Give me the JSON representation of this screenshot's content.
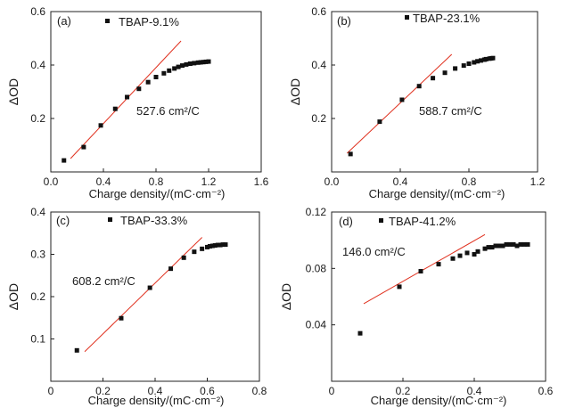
{
  "chart_data": [
    {
      "type": "scatter",
      "panel": "(a)",
      "legend": "TBAP-9.1%",
      "annotation": "527.6 cm²/C",
      "xlabel": "Charge density/(mC·cm⁻²)",
      "ylabel": "ΔOD",
      "xlim": [
        0,
        1.6
      ],
      "ylim": [
        0,
        0.6
      ],
      "xticks": [
        "0.0",
        "0.4",
        "0.8",
        "1.2",
        "1.6"
      ],
      "yticks": [
        "0.2",
        "0.4",
        "0.6"
      ],
      "x": [
        0.1,
        0.25,
        0.38,
        0.49,
        0.58,
        0.67,
        0.74,
        0.8,
        0.86,
        0.9,
        0.94,
        0.97,
        1.0,
        1.03,
        1.06,
        1.09,
        1.12,
        1.14,
        1.16,
        1.18,
        1.2
      ],
      "y": [
        0.043,
        0.093,
        0.174,
        0.236,
        0.28,
        0.311,
        0.336,
        0.355,
        0.369,
        0.379,
        0.387,
        0.393,
        0.398,
        0.402,
        0.405,
        0.407,
        0.409,
        0.41,
        0.411,
        0.412,
        0.413
      ],
      "fit": {
        "x": [
          0.15,
          0.99
        ],
        "y": [
          0.05,
          0.49
        ]
      }
    },
    {
      "type": "scatter",
      "panel": "(b)",
      "legend": "TBAP-23.1%",
      "annotation": "588.7 cm²/C",
      "xlabel": "Charge density/(mC·cm⁻²)",
      "ylabel": "ΔOD",
      "xlim": [
        0,
        1.2
      ],
      "ylim": [
        0,
        0.6
      ],
      "xticks": [
        "0.0",
        "0.4",
        "0.8",
        "1.2"
      ],
      "yticks": [
        "0.2",
        "0.4",
        "0.6"
      ],
      "x": [
        0.11,
        0.28,
        0.41,
        0.51,
        0.59,
        0.66,
        0.72,
        0.77,
        0.8,
        0.83,
        0.85,
        0.87,
        0.89,
        0.9,
        0.92,
        0.93,
        0.94
      ],
      "y": [
        0.067,
        0.188,
        0.27,
        0.321,
        0.351,
        0.371,
        0.387,
        0.398,
        0.405,
        0.41,
        0.414,
        0.417,
        0.42,
        0.422,
        0.424,
        0.425,
        0.426
      ],
      "fit": {
        "x": [
          0.09,
          0.7
        ],
        "y": [
          0.07,
          0.44
        ]
      }
    },
    {
      "type": "scatter",
      "panel": "(c)",
      "legend": "TBAP-33.3%",
      "annotation": "608.2 cm²/C",
      "xlabel": "Charge density/(mC·cm⁻²)",
      "ylabel": "ΔOD",
      "xlim": [
        0,
        0.8
      ],
      "ylim": [
        0,
        0.4
      ],
      "xticks": [
        "0",
        "0.2",
        "0.4",
        "0.6",
        "0.8"
      ],
      "yticks": [
        "0.1",
        "0.2",
        "0.3",
        "0.4"
      ],
      "x": [
        0.1,
        0.27,
        0.38,
        0.46,
        0.51,
        0.55,
        0.58,
        0.6,
        0.61,
        0.62,
        0.63,
        0.64,
        0.65,
        0.66,
        0.67
      ],
      "y": [
        0.073,
        0.149,
        0.221,
        0.266,
        0.292,
        0.306,
        0.313,
        0.317,
        0.319,
        0.32,
        0.321,
        0.322,
        0.322,
        0.323,
        0.323
      ],
      "fit": {
        "x": [
          0.13,
          0.58
        ],
        "y": [
          0.07,
          0.34
        ]
      }
    },
    {
      "type": "scatter",
      "panel": "(d)",
      "legend": "TBAP-41.2%",
      "annotation": "146.0 cm²/C",
      "xlabel": "Charge density/(mC·cm⁻²)",
      "ylabel": "ΔOD",
      "xlim": [
        0,
        0.6
      ],
      "ylim": [
        0,
        0.12
      ],
      "xticks": [
        "0",
        "0.2",
        "0.4",
        "0.6"
      ],
      "yticks": [
        "0.04",
        "0.08",
        "0.12"
      ],
      "x": [
        0.08,
        0.19,
        0.25,
        0.3,
        0.34,
        0.36,
        0.38,
        0.4,
        0.41,
        0.43,
        0.44,
        0.45,
        0.46,
        0.47,
        0.48,
        0.49,
        0.5,
        0.51,
        0.52,
        0.53,
        0.54,
        0.55
      ],
      "y": [
        0.034,
        0.067,
        0.078,
        0.083,
        0.087,
        0.089,
        0.091,
        0.09,
        0.092,
        0.094,
        0.095,
        0.095,
        0.096,
        0.096,
        0.096,
        0.097,
        0.097,
        0.097,
        0.096,
        0.097,
        0.097,
        0.097
      ],
      "fit": {
        "x": [
          0.09,
          0.43
        ],
        "y": [
          0.055,
          0.104
        ]
      }
    }
  ]
}
